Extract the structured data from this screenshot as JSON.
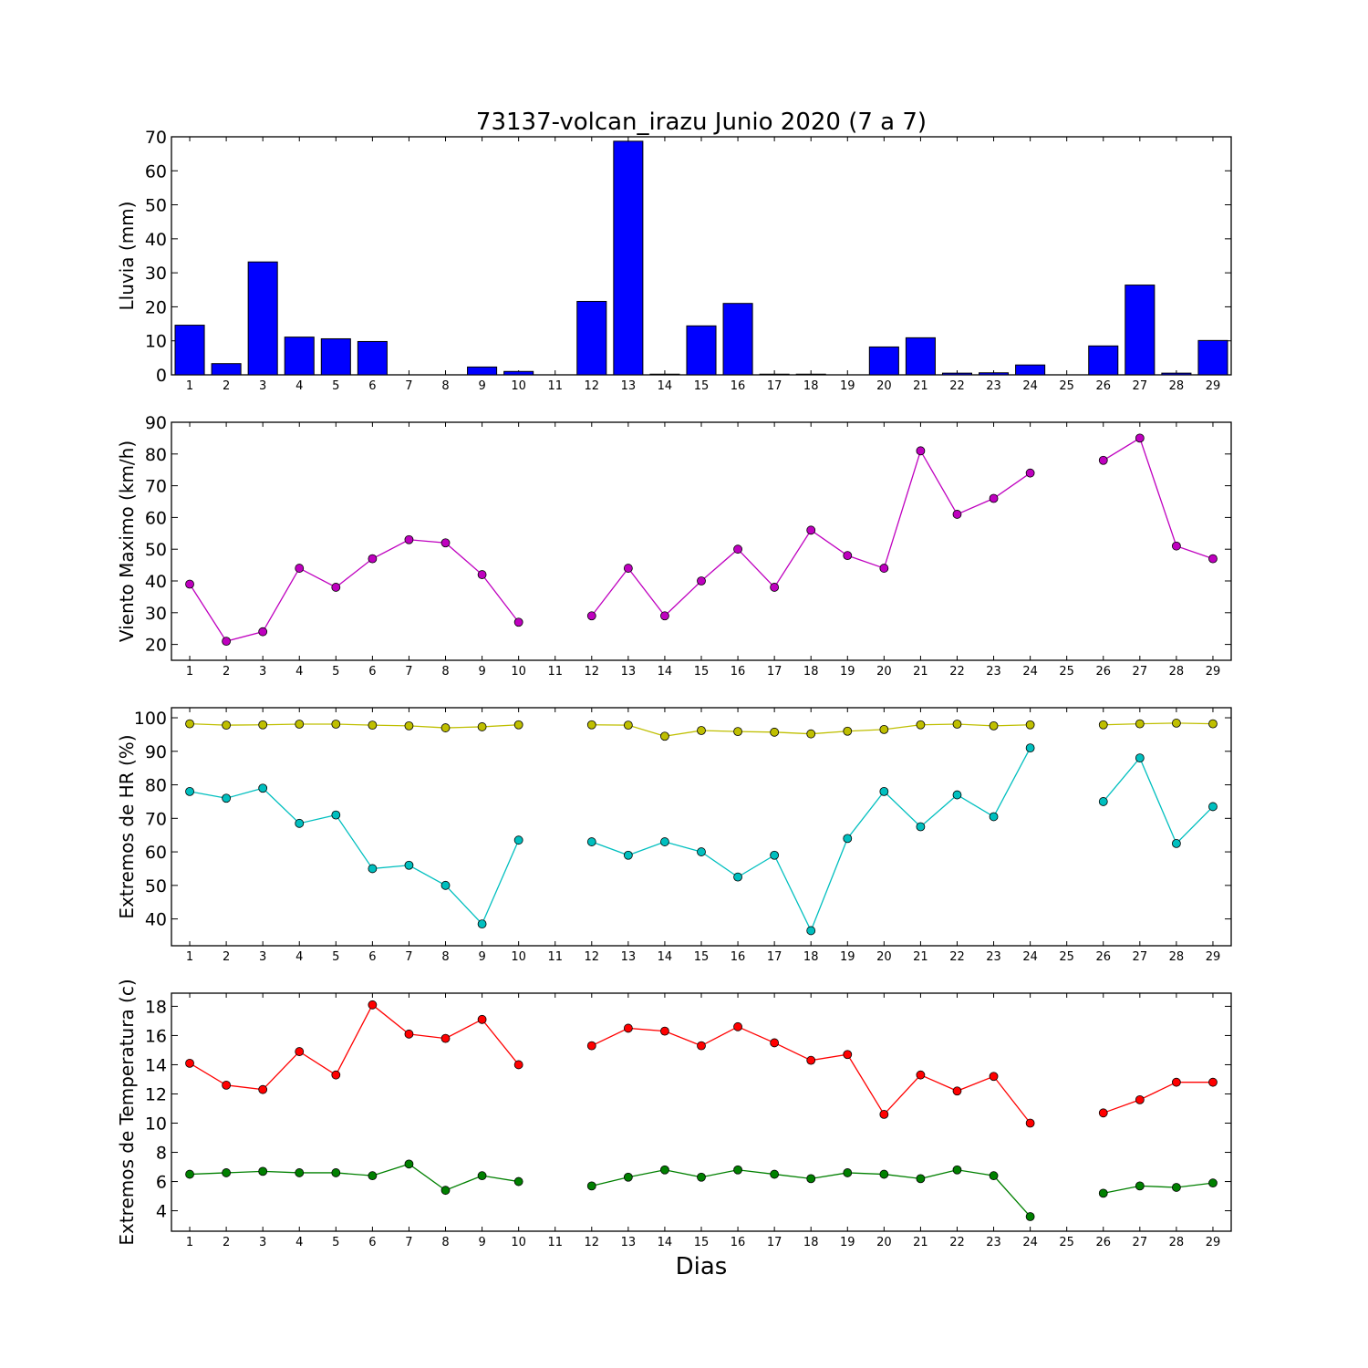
{
  "title": "73137-volcan_irazu Junio 2020  (7 a 7)",
  "xlabel": "Dias",
  "days": [
    1,
    2,
    3,
    4,
    5,
    6,
    7,
    8,
    9,
    10,
    11,
    12,
    13,
    14,
    15,
    16,
    17,
    18,
    19,
    20,
    21,
    22,
    23,
    24,
    25,
    26,
    27,
    28,
    29
  ],
  "chart_data": [
    {
      "type": "bar",
      "ylabel": "Lluvia (mm)",
      "ylim": [
        0,
        70
      ],
      "yticks": [
        0,
        10,
        20,
        30,
        40,
        50,
        60,
        70
      ],
      "colors": {
        "bar": "#0000ff"
      },
      "series": [
        {
          "values": [
            14.6,
            3.3,
            33.2,
            11.1,
            10.6,
            9.8,
            0,
            0,
            2.3,
            1.0,
            0,
            21.6,
            68.7,
            0.2,
            14.4,
            21.0,
            0.2,
            0.2,
            0,
            8.2,
            10.9,
            0.5,
            0.6,
            2.9,
            0,
            8.5,
            26.4,
            0.5,
            10.1
          ]
        }
      ]
    },
    {
      "type": "line",
      "ylabel": "Viento Maximo (km/h)",
      "ylim": [
        15,
        90
      ],
      "yticks": [
        20,
        30,
        40,
        50,
        60,
        70,
        80,
        90
      ],
      "series": [
        {
          "color": "#bf00bf",
          "values": [
            39,
            21,
            24,
            44,
            38,
            47,
            53,
            52,
            42,
            27,
            null,
            29,
            44,
            29,
            40,
            50,
            38,
            56,
            48,
            44,
            81,
            61,
            66,
            74,
            null,
            78,
            85,
            51,
            47
          ]
        }
      ]
    },
    {
      "type": "line",
      "ylabel": "Extremos de HR (%)",
      "ylim": [
        32,
        103
      ],
      "yticks": [
        40,
        50,
        60,
        70,
        80,
        90,
        100
      ],
      "series": [
        {
          "color": "#bfbf00",
          "values": [
            98.2,
            97.8,
            97.9,
            98.1,
            98.1,
            97.8,
            97.6,
            97.0,
            97.3,
            97.9,
            null,
            97.9,
            97.8,
            94.5,
            96.2,
            95.9,
            95.7,
            95.2,
            96.0,
            96.5,
            97.9,
            98.1,
            97.6,
            97.9,
            null,
            97.9,
            98.2,
            98.4,
            98.2
          ]
        },
        {
          "color": "#00bfbf",
          "values": [
            78,
            76,
            79,
            68.5,
            71,
            55,
            56,
            50,
            38.5,
            63.5,
            null,
            63,
            59,
            63,
            60,
            52.5,
            59,
            36.5,
            64,
            78,
            67.5,
            77,
            70.5,
            91,
            null,
            75,
            88,
            62.5,
            73.5
          ]
        }
      ]
    },
    {
      "type": "line",
      "ylabel": "Extremos de Temperatura (c)",
      "ylim": [
        2.6,
        18.9
      ],
      "yticks": [
        4,
        6,
        8,
        10,
        12,
        14,
        16,
        18
      ],
      "series": [
        {
          "color": "#ff0000",
          "values": [
            14.1,
            12.6,
            12.3,
            14.9,
            13.3,
            18.1,
            16.1,
            15.8,
            17.1,
            14.0,
            null,
            15.3,
            16.5,
            16.3,
            15.3,
            16.6,
            15.5,
            14.3,
            14.7,
            10.6,
            13.3,
            12.2,
            13.2,
            10.0,
            null,
            10.7,
            11.6,
            12.8,
            12.8
          ]
        },
        {
          "color": "#008000",
          "values": [
            6.5,
            6.6,
            6.7,
            6.6,
            6.6,
            6.4,
            7.2,
            5.4,
            6.4,
            6.0,
            null,
            5.7,
            6.3,
            6.8,
            6.3,
            6.8,
            6.5,
            6.2,
            6.6,
            6.5,
            6.2,
            6.8,
            6.4,
            3.6,
            null,
            5.2,
            5.7,
            5.6,
            5.9
          ]
        }
      ]
    }
  ]
}
